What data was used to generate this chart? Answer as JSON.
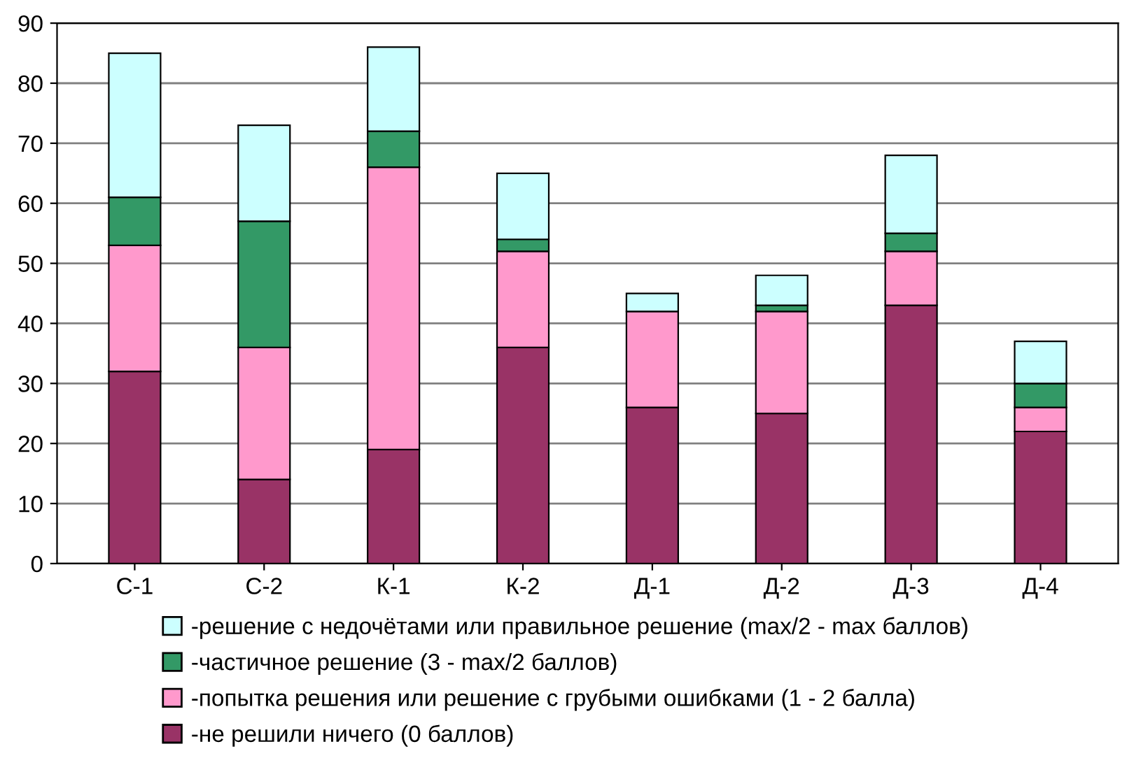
{
  "chart_data": {
    "type": "bar",
    "stacked": true,
    "categories": [
      "С-1",
      "С-2",
      "К-1",
      "К-2",
      "Д-1",
      "Д-2",
      "Д-3",
      "Д-4"
    ],
    "series": [
      {
        "name": "-не решили ничего (0 баллов)",
        "color": "#993366",
        "values": [
          32,
          14,
          19,
          36,
          26,
          25,
          43,
          22
        ]
      },
      {
        "name": "-попытка решения или решение с грубыми ошибками (1 - 2 балла)",
        "color": "#ff99cc",
        "values": [
          21,
          22,
          47,
          16,
          16,
          17,
          9,
          4
        ]
      },
      {
        "name": "-частичное решение (3 - max/2 баллов)",
        "color": "#339966",
        "values": [
          8,
          21,
          6,
          2,
          0,
          1,
          3,
          4
        ]
      },
      {
        "name": "-решение с недочётами или правильное решение (max/2 - max баллов)",
        "color": "#ccffff",
        "values": [
          24,
          16,
          14,
          11,
          3,
          5,
          13,
          7
        ]
      }
    ],
    "ylim": [
      0,
      90
    ],
    "yticks": [
      0,
      10,
      20,
      30,
      40,
      50,
      60,
      70,
      80,
      90
    ],
    "grid": "y",
    "legend": "bottom"
  }
}
